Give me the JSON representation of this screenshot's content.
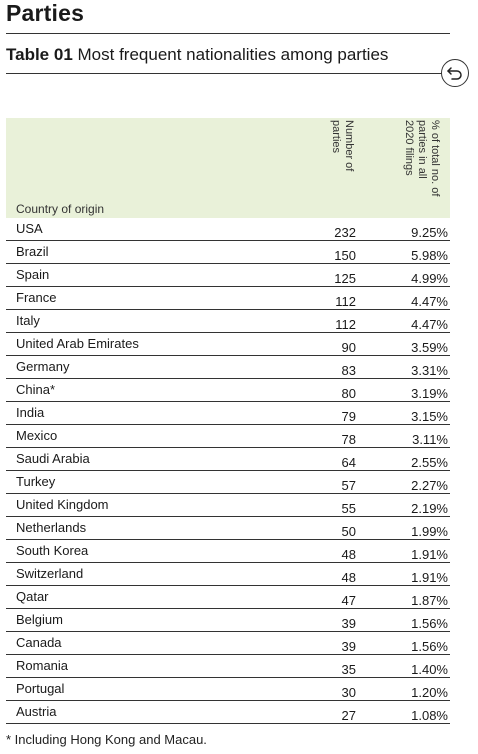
{
  "section_title": "Parties",
  "table": {
    "number": "Table 01",
    "title": "Most frequent nationalities among parties",
    "col_country": "Country of origin",
    "col_count": "Number of parties",
    "col_pct": "% of total no. of parties in all 2020 filings",
    "rows": [
      {
        "country": "USA",
        "count": "232",
        "pct": "9.25%"
      },
      {
        "country": "Brazil",
        "count": "150",
        "pct": "5.98%"
      },
      {
        "country": "Spain",
        "count": "125",
        "pct": "4.99%"
      },
      {
        "country": "France",
        "count": "112",
        "pct": "4.47%"
      },
      {
        "country": "Italy",
        "count": "112",
        "pct": "4.47%"
      },
      {
        "country": "United Arab Emirates",
        "count": "90",
        "pct": "3.59%"
      },
      {
        "country": "Germany",
        "count": "83",
        "pct": "3.31%"
      },
      {
        "country": "China*",
        "count": "80",
        "pct": "3.19%"
      },
      {
        "country": "India",
        "count": "79",
        "pct": "3.15%"
      },
      {
        "country": "Mexico",
        "count": "78",
        "pct": "3.11%"
      },
      {
        "country": "Saudi Arabia",
        "count": "64",
        "pct": "2.55%"
      },
      {
        "country": "Turkey",
        "count": "57",
        "pct": "2.27%"
      },
      {
        "country": "United Kingdom",
        "count": "55",
        "pct": "2.19%"
      },
      {
        "country": "Netherlands",
        "count": "50",
        "pct": "1.99%"
      },
      {
        "country": "South Korea",
        "count": "48",
        "pct": "1.91%"
      },
      {
        "country": "Switzerland",
        "count": "48",
        "pct": "1.91%"
      },
      {
        "country": "Qatar",
        "count": "47",
        "pct": "1.87%"
      },
      {
        "country": "Belgium",
        "count": "39",
        "pct": "1.56%"
      },
      {
        "country": "Canada",
        "count": "39",
        "pct": "1.56%"
      },
      {
        "country": "Romania",
        "count": "35",
        "pct": "1.40%"
      },
      {
        "country": "Portugal",
        "count": "30",
        "pct": "1.20%"
      },
      {
        "country": "Austria",
        "count": "27",
        "pct": "1.08%"
      }
    ]
  },
  "footnote": "* Including Hong Kong and Macau.",
  "icons": {
    "back": "return-arrow-icon"
  },
  "colors": {
    "header_band": "#e9f1d9",
    "rule": "#333333"
  }
}
